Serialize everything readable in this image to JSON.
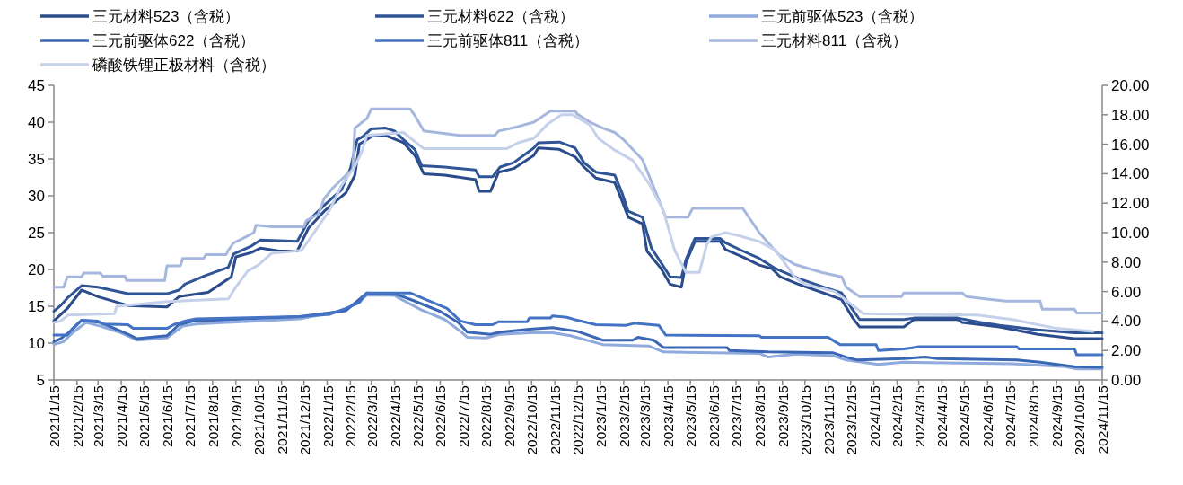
{
  "chart_data": {
    "type": "line",
    "legend": "top",
    "ylim": [
      5,
      45
    ],
    "yticks": [
      5,
      10,
      15,
      20,
      25,
      30,
      35,
      40,
      45
    ],
    "y2lim": [
      0,
      20
    ],
    "y2ticks": [
      {
        "value": 0,
        "label": "0.00"
      },
      {
        "value": 2,
        "label": "2.00"
      },
      {
        "value": 4,
        "label": "4.00"
      },
      {
        "value": 6,
        "label": "6.00"
      },
      {
        "value": 8,
        "label": "8.00"
      },
      {
        "value": 10,
        "label": "10.00"
      },
      {
        "value": 12,
        "label": "12.00"
      },
      {
        "value": 14,
        "label": "14.00"
      },
      {
        "value": 16,
        "label": "16.00"
      },
      {
        "value": 18,
        "label": "18.00"
      },
      {
        "value": 20,
        "label": "20.00"
      }
    ],
    "xlim": [
      "2021-01-15",
      "2024-11-15"
    ],
    "xticks": [
      {
        "value": "2021-01-15",
        "label": "2021/1/15"
      },
      {
        "value": "2021-02-15",
        "label": "2021/2/15"
      },
      {
        "value": "2021-03-15",
        "label": "2021/3/15"
      },
      {
        "value": "2021-04-15",
        "label": "2021/4/15"
      },
      {
        "value": "2021-05-15",
        "label": "2021/5/15"
      },
      {
        "value": "2021-06-15",
        "label": "2021/6/15"
      },
      {
        "value": "2021-07-15",
        "label": "2021/7/15"
      },
      {
        "value": "2021-08-15",
        "label": "2021/8/15"
      },
      {
        "value": "2021-09-15",
        "label": "2021/9/15"
      },
      {
        "value": "2021-10-15",
        "label": "2021/10/15"
      },
      {
        "value": "2021-11-15",
        "label": "2021/11/15"
      },
      {
        "value": "2021-12-15",
        "label": "2021/12/15"
      },
      {
        "value": "2022-01-15",
        "label": "2022/1/15"
      },
      {
        "value": "2022-02-15",
        "label": "2022/2/15"
      },
      {
        "value": "2022-03-15",
        "label": "2022/3/15"
      },
      {
        "value": "2022-04-15",
        "label": "2022/4/15"
      },
      {
        "value": "2022-05-15",
        "label": "2022/5/15"
      },
      {
        "value": "2022-06-15",
        "label": "2022/6/15"
      },
      {
        "value": "2022-07-15",
        "label": "2022/7/15"
      },
      {
        "value": "2022-08-15",
        "label": "2022/8/15"
      },
      {
        "value": "2022-09-15",
        "label": "2022/9/15"
      },
      {
        "value": "2022-10-15",
        "label": "2022/10/15"
      },
      {
        "value": "2022-11-15",
        "label": "2022/11/15"
      },
      {
        "value": "2022-12-15",
        "label": "2022/12/15"
      },
      {
        "value": "2023-01-15",
        "label": "2023/1/15"
      },
      {
        "value": "2023-02-15",
        "label": "2023/2/15"
      },
      {
        "value": "2023-03-15",
        "label": "2023/3/15"
      },
      {
        "value": "2023-04-15",
        "label": "2023/4/15"
      },
      {
        "value": "2023-05-15",
        "label": "2023/5/15"
      },
      {
        "value": "2023-06-15",
        "label": "2023/6/15"
      },
      {
        "value": "2023-07-15",
        "label": "2023/7/15"
      },
      {
        "value": "2023-08-15",
        "label": "2023/8/15"
      },
      {
        "value": "2023-09-15",
        "label": "2023/9/15"
      },
      {
        "value": "2023-10-15",
        "label": "2023/10/15"
      },
      {
        "value": "2023-11-15",
        "label": "2023/11/15"
      },
      {
        "value": "2023-12-15",
        "label": "2023/12/15"
      },
      {
        "value": "2024-01-15",
        "label": "2024/1/15"
      },
      {
        "value": "2024-02-15",
        "label": "2024/2/15"
      },
      {
        "value": "2024-03-15",
        "label": "2024/3/15"
      },
      {
        "value": "2024-04-15",
        "label": "2024/4/15"
      },
      {
        "value": "2024-05-15",
        "label": "2024/5/15"
      },
      {
        "value": "2024-06-15",
        "label": "2024/6/15"
      },
      {
        "value": "2024-07-15",
        "label": "2024/7/15"
      },
      {
        "value": "2024-08-15",
        "label": "2024/8/15"
      },
      {
        "value": "2024-09-15",
        "label": "2024/9/15"
      },
      {
        "value": "2024-10-15",
        "label": "2024/10/15"
      },
      {
        "value": "2024-11-15",
        "label": "2024/11/15"
      }
    ],
    "series": [
      {
        "name": "三元材料523（含税）",
        "color": "#2b4c8c",
        "x": [
          "2021-01-15",
          "2021-02-02",
          "2021-02-21",
          "2021-03-15",
          "2021-04-24",
          "2021-06-15",
          "2021-07-01",
          "2021-08-09",
          "2021-09-09",
          "2021-09-15",
          "2021-10-06",
          "2021-10-18",
          "2021-11-12",
          "2021-12-06",
          "2021-12-21",
          "2022-01-11",
          "2022-02-09",
          "2022-02-21",
          "2022-02-27",
          "2022-03-18",
          "2022-04-03",
          "2022-04-27",
          "2022-05-12",
          "2022-05-24",
          "2022-06-21",
          "2022-08-01",
          "2022-08-06",
          "2022-08-21",
          "2022-09-01",
          "2022-09-21",
          "2022-10-18",
          "2022-10-24",
          "2022-11-21",
          "2022-12-12",
          "2022-12-24",
          "2023-01-09",
          "2023-02-03",
          "2023-02-12",
          "2023-02-21",
          "2023-03-12",
          "2023-03-18",
          "2023-04-06",
          "2023-04-18",
          "2023-05-03",
          "2023-05-09",
          "2023-05-21",
          "2023-06-24",
          "2023-07-01",
          "2023-07-24",
          "2023-08-15",
          "2023-09-01",
          "2023-09-12",
          "2023-10-06",
          "2023-11-09",
          "2023-12-03",
          "2023-12-18",
          "2023-12-27",
          "2024-02-24",
          "2024-03-09",
          "2024-05-06",
          "2024-05-12",
          "2024-07-01",
          "2024-08-21",
          "2024-10-09",
          "2024-11-15"
        ],
        "values": [
          13.0,
          14.7,
          17.2,
          16.3,
          15.1,
          14.9,
          16.3,
          16.9,
          19.0,
          21.7,
          22.3,
          22.9,
          22.5,
          22.5,
          25.6,
          27.9,
          30.4,
          32.8,
          37.0,
          38.2,
          38.2,
          37.2,
          35.5,
          33.0,
          32.8,
          32.2,
          30.6,
          30.6,
          33.2,
          33.7,
          35.5,
          36.5,
          36.3,
          35.3,
          33.9,
          32.4,
          31.8,
          29.5,
          27.1,
          26.2,
          22.5,
          20.1,
          18.0,
          17.6,
          20.9,
          23.8,
          23.8,
          22.7,
          21.7,
          20.6,
          20.1,
          19.0,
          18.0,
          16.8,
          15.9,
          13.4,
          12.2,
          12.2,
          13.2,
          13.2,
          12.8,
          12.2,
          11.2,
          10.6,
          10.6
        ]
      },
      {
        "name": "三元材料622（含税）",
        "color": "#2f5597",
        "x": [
          "2021-01-15",
          "2021-01-24",
          "2021-02-02",
          "2021-02-21",
          "2021-03-15",
          "2021-04-24",
          "2021-06-15",
          "2021-07-01",
          "2021-07-09",
          "2021-08-06",
          "2021-09-05",
          "2021-09-12",
          "2021-10-06",
          "2021-10-18",
          "2021-12-06",
          "2021-12-21",
          "2022-01-11",
          "2022-02-03",
          "2022-02-15",
          "2022-02-24",
          "2022-03-03",
          "2022-03-15",
          "2022-04-03",
          "2022-04-15",
          "2022-04-27",
          "2022-05-12",
          "2022-05-21",
          "2022-06-21",
          "2022-08-01",
          "2022-08-06",
          "2022-08-24",
          "2022-09-03",
          "2022-09-21",
          "2022-10-18",
          "2022-10-24",
          "2022-11-21",
          "2022-12-12",
          "2022-12-24",
          "2023-01-09",
          "2023-02-03",
          "2023-02-12",
          "2023-02-21",
          "2023-03-12",
          "2023-03-24",
          "2023-04-06",
          "2023-04-18",
          "2023-05-03",
          "2023-05-09",
          "2023-05-21",
          "2023-06-24",
          "2023-07-01",
          "2023-07-24",
          "2023-08-15",
          "2023-09-06",
          "2023-10-06",
          "2023-11-09",
          "2023-12-03",
          "2023-12-18",
          "2023-12-27",
          "2024-02-24",
          "2024-03-09",
          "2024-05-06",
          "2024-06-06",
          "2024-07-01",
          "2024-08-21",
          "2024-10-09",
          "2024-11-15"
        ],
        "values": [
          14.3,
          15.1,
          16.1,
          17.8,
          17.6,
          16.7,
          16.7,
          17.2,
          18.0,
          19.2,
          20.3,
          22.1,
          23.2,
          24.0,
          23.8,
          26.6,
          28.7,
          30.8,
          33.7,
          37.6,
          38.0,
          39.1,
          39.2,
          38.8,
          37.6,
          36.3,
          34.1,
          33.9,
          33.5,
          32.6,
          32.6,
          33.9,
          34.5,
          36.5,
          37.2,
          37.3,
          36.5,
          34.5,
          33.2,
          32.8,
          30.6,
          27.9,
          27.1,
          22.9,
          20.9,
          19.0,
          18.9,
          21.3,
          24.2,
          24.2,
          23.6,
          22.5,
          21.5,
          20.1,
          18.8,
          17.6,
          16.8,
          14.5,
          13.2,
          13.2,
          13.4,
          13.4,
          12.8,
          12.4,
          11.8,
          11.4,
          11.4
        ]
      },
      {
        "name": "三元前驱体523（含税）",
        "color": "#8faadc",
        "x": [
          "2021-01-15",
          "2021-01-28",
          "2021-02-09",
          "2021-02-27",
          "2021-03-18",
          "2021-04-12",
          "2021-05-06",
          "2021-06-15",
          "2021-07-06",
          "2021-07-24",
          "2021-12-09",
          "2022-02-09",
          "2022-03-09",
          "2022-04-15",
          "2022-04-21",
          "2022-05-21",
          "2022-06-21",
          "2022-07-12",
          "2022-07-21",
          "2022-08-15",
          "2022-09-03",
          "2022-10-12",
          "2022-11-12",
          "2022-12-06",
          "2023-01-18",
          "2023-03-21",
          "2023-04-09",
          "2023-08-15",
          "2023-08-27",
          "2023-10-03",
          "2023-11-21",
          "2023-12-09",
          "2024-01-21",
          "2024-02-24",
          "2024-07-18",
          "2024-09-27",
          "2024-10-12",
          "2024-11-15"
        ],
        "values": [
          9.8,
          10.2,
          11.4,
          12.8,
          12.3,
          11.5,
          10.4,
          10.7,
          12.3,
          12.6,
          13.3,
          14.5,
          16.5,
          16.5,
          16.1,
          14.5,
          13.2,
          11.6,
          10.8,
          10.7,
          11.2,
          11.4,
          11.4,
          11.0,
          9.8,
          9.6,
          8.8,
          8.6,
          8.1,
          8.5,
          8.3,
          7.7,
          7.1,
          7.4,
          7.2,
          6.8,
          6.5,
          6.5
        ]
      },
      {
        "name": "三元前驱体622（含税）",
        "color": "#3a67b5",
        "x": [
          "2021-01-15",
          "2021-01-24",
          "2021-02-06",
          "2021-02-21",
          "2021-03-18",
          "2021-04-06",
          "2021-04-24",
          "2021-05-06",
          "2021-06-15",
          "2021-07-01",
          "2021-07-21",
          "2021-12-09",
          "2022-02-09",
          "2022-03-09",
          "2022-04-18",
          "2022-05-12",
          "2022-06-15",
          "2022-07-09",
          "2022-07-21",
          "2022-08-21",
          "2022-09-03",
          "2022-10-12",
          "2022-11-12",
          "2022-12-15",
          "2023-01-18",
          "2023-02-27",
          "2023-03-06",
          "2023-03-27",
          "2023-04-09",
          "2023-07-03",
          "2023-07-06",
          "2023-08-27",
          "2023-11-21",
          "2023-12-09",
          "2023-12-24",
          "2024-02-24",
          "2024-03-24",
          "2024-04-09",
          "2024-07-24",
          "2024-08-24",
          "2024-10-09",
          "2024-11-15"
        ],
        "values": [
          10.2,
          10.6,
          11.6,
          13.1,
          12.8,
          12.0,
          11.2,
          10.6,
          11.0,
          12.5,
          13.0,
          13.6,
          14.4,
          16.8,
          16.6,
          15.7,
          14.3,
          12.8,
          11.5,
          11.2,
          11.5,
          11.9,
          12.1,
          11.6,
          10.4,
          10.4,
          10.8,
          10.4,
          9.4,
          9.4,
          9.0,
          8.8,
          8.7,
          8.1,
          7.7,
          7.9,
          8.1,
          7.9,
          7.7,
          7.4,
          6.8,
          6.7
        ]
      },
      {
        "name": "三元前驱体811（含税）",
        "color": "#4472c4",
        "x": [
          "2021-01-15",
          "2021-02-02",
          "2021-02-09",
          "2021-02-21",
          "2021-03-15",
          "2021-03-21",
          "2021-04-24",
          "2021-05-01",
          "2021-06-15",
          "2021-06-24",
          "2021-07-09",
          "2021-07-24",
          "2021-12-09",
          "2022-01-18",
          "2022-02-09",
          "2022-02-27",
          "2022-03-09",
          "2022-05-06",
          "2022-05-27",
          "2022-06-24",
          "2022-07-12",
          "2022-08-01",
          "2022-08-24",
          "2022-09-01",
          "2022-10-09",
          "2022-10-12",
          "2022-11-09",
          "2022-11-12",
          "2022-12-01",
          "2022-12-15",
          "2023-01-09",
          "2023-02-18",
          "2023-03-01",
          "2023-04-03",
          "2023-04-12",
          "2023-08-15",
          "2023-08-18",
          "2023-11-15",
          "2023-11-24",
          "2023-12-01",
          "2024-01-18",
          "2024-01-21",
          "2024-02-24",
          "2024-03-15",
          "2024-07-24",
          "2024-07-27",
          "2024-10-09",
          "2024-10-12",
          "2024-11-15"
        ],
        "values": [
          11.1,
          11.1,
          12.0,
          13.1,
          13.0,
          12.6,
          12.5,
          12.0,
          12.0,
          12.5,
          13.0,
          13.3,
          13.6,
          13.9,
          14.7,
          15.5,
          16.8,
          16.8,
          15.9,
          14.7,
          13.0,
          12.5,
          12.5,
          12.9,
          12.9,
          13.4,
          13.4,
          13.7,
          13.5,
          13.1,
          12.5,
          12.4,
          12.7,
          12.4,
          11.1,
          11.0,
          10.8,
          10.8,
          10.2,
          9.8,
          9.8,
          9.0,
          9.2,
          9.5,
          9.5,
          9.2,
          9.2,
          8.4,
          8.4
        ]
      },
      {
        "name": "三元材料811（含税）",
        "color": "#a6b7de",
        "x": [
          "2021-01-15",
          "2021-01-28",
          "2021-02-02",
          "2021-02-21",
          "2021-02-24",
          "2021-03-18",
          "2021-03-21",
          "2021-04-20",
          "2021-04-22",
          "2021-06-12",
          "2021-06-15",
          "2021-07-03",
          "2021-07-06",
          "2021-08-03",
          "2021-08-06",
          "2021-09-02",
          "2021-09-05",
          "2021-09-12",
          "2021-09-24",
          "2021-10-09",
          "2021-10-12",
          "2021-11-03",
          "2021-12-15",
          "2021-12-18",
          "2022-01-03",
          "2022-01-11",
          "2022-01-22",
          "2022-02-09",
          "2022-02-18",
          "2022-02-21",
          "2022-03-09",
          "2022-03-15",
          "2022-05-06",
          "2022-05-12",
          "2022-05-24",
          "2022-07-12",
          "2022-08-27",
          "2022-09-01",
          "2022-09-27",
          "2022-10-18",
          "2022-11-09",
          "2022-12-12",
          "2022-12-15",
          "2023-01-01",
          "2023-01-18",
          "2023-02-03",
          "2023-02-15",
          "2023-03-12",
          "2023-03-27",
          "2023-04-12",
          "2023-05-12",
          "2023-05-18",
          "2023-07-24",
          "2023-08-01",
          "2023-08-15",
          "2023-09-09",
          "2023-10-01",
          "2023-11-06",
          "2023-12-03",
          "2023-12-09",
          "2023-12-27",
          "2024-02-21",
          "2024-02-24",
          "2024-05-12",
          "2024-05-18",
          "2024-06-12",
          "2024-07-09",
          "2024-08-24",
          "2024-08-27",
          "2024-10-09",
          "2024-10-12",
          "2024-11-15"
        ],
        "values": [
          17.6,
          17.6,
          19.0,
          19.0,
          19.5,
          19.5,
          19.1,
          19.1,
          18.5,
          18.5,
          20.5,
          20.5,
          21.5,
          21.5,
          22.0,
          22.0,
          22.6,
          23.6,
          24.2,
          25.0,
          26.0,
          25.8,
          25.8,
          26.6,
          27.5,
          29.6,
          31.0,
          32.8,
          33.5,
          39.2,
          40.5,
          41.8,
          41.8,
          40.9,
          38.8,
          38.2,
          38.2,
          38.8,
          39.4,
          40.0,
          41.5,
          41.5,
          41.1,
          40.0,
          39.2,
          38.6,
          37.6,
          34.9,
          31.2,
          27.1,
          27.1,
          28.3,
          28.3,
          27.1,
          25.0,
          22.1,
          20.7,
          19.6,
          19.0,
          17.6,
          16.3,
          16.3,
          16.8,
          16.8,
          16.3,
          16.0,
          15.7,
          15.7,
          14.6,
          14.6,
          14.1,
          14.1
        ]
      },
      {
        "name": "磷酸铁锂正极材料（含税）",
        "color": "#c5d0eb",
        "axis": "y2",
        "x": [
          "2021-01-15",
          "2021-01-24",
          "2021-02-03",
          "2021-04-06",
          "2021-04-09",
          "2021-06-12",
          "2021-07-18",
          "2021-09-05",
          "2021-09-15",
          "2021-10-01",
          "2021-10-15",
          "2021-11-02",
          "2021-12-12",
          "2022-01-03",
          "2022-01-18",
          "2022-02-03",
          "2022-02-21",
          "2022-03-03",
          "2022-03-09",
          "2022-04-27",
          "2022-05-09",
          "2022-05-24",
          "2022-09-12",
          "2022-09-27",
          "2022-10-18",
          "2022-11-06",
          "2022-11-24",
          "2022-12-09",
          "2023-01-01",
          "2023-01-12",
          "2023-02-03",
          "2023-02-27",
          "2023-03-21",
          "2023-04-09",
          "2023-04-24",
          "2023-05-09",
          "2023-05-27",
          "2023-06-06",
          "2023-06-12",
          "2023-07-01",
          "2023-07-18",
          "2023-08-15",
          "2023-09-06",
          "2023-10-01",
          "2023-10-15",
          "2023-11-24",
          "2024-01-01",
          "2024-06-01",
          "2024-07-18",
          "2024-09-15",
          "2024-11-03"
        ],
        "values": [
          3.9,
          4.0,
          4.4,
          4.5,
          5.0,
          5.3,
          5.4,
          5.5,
          6.3,
          7.4,
          7.8,
          8.6,
          8.8,
          10.4,
          11.5,
          13.2,
          14.5,
          15.6,
          16.6,
          16.8,
          16.3,
          15.7,
          15.7,
          16.1,
          16.4,
          17.4,
          18.0,
          18.0,
          17.3,
          16.4,
          15.6,
          14.9,
          13.3,
          11.5,
          8.8,
          7.3,
          7.3,
          9.2,
          9.7,
          10.0,
          9.8,
          9.4,
          8.8,
          7.0,
          6.5,
          6.0,
          4.5,
          4.4,
          4.1,
          3.5,
          3.3
        ]
      }
    ]
  }
}
